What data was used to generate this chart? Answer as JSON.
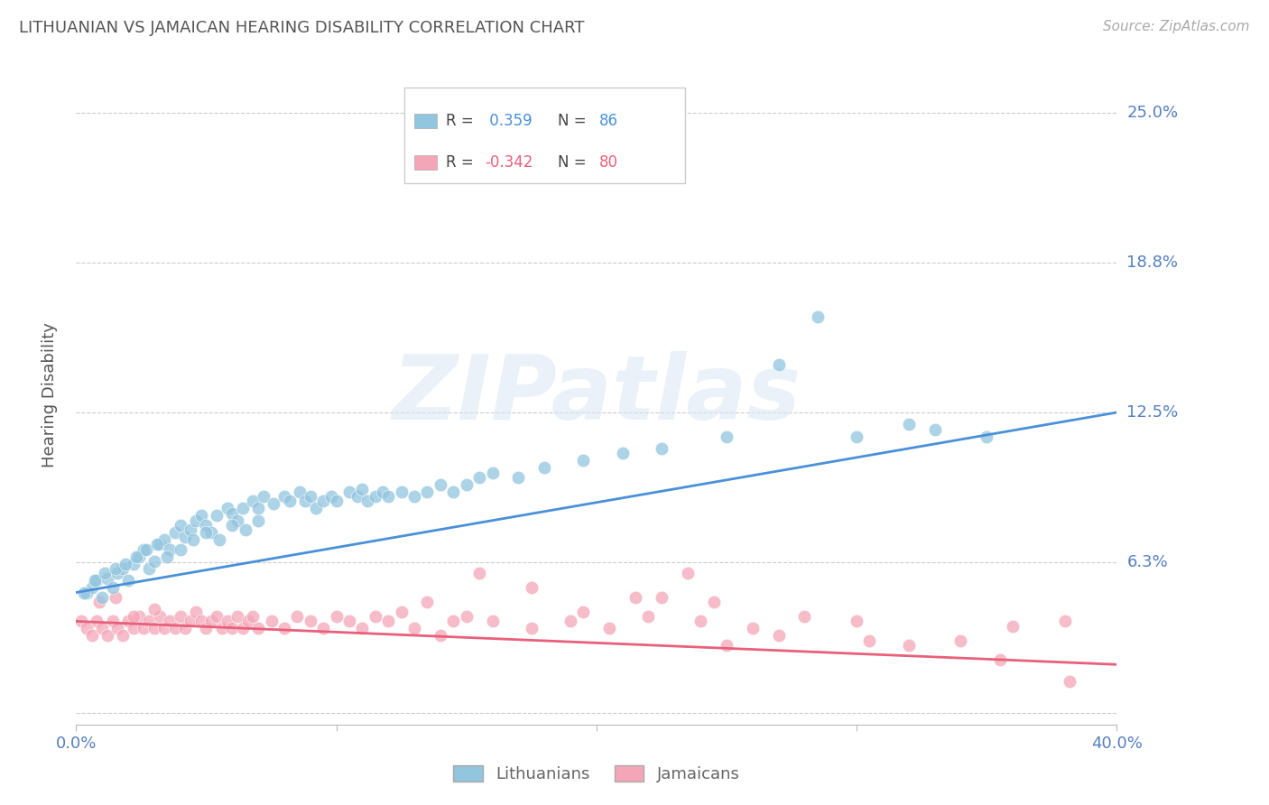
{
  "title": "LITHUANIAN VS JAMAICAN HEARING DISABILITY CORRELATION CHART",
  "source": "Source: ZipAtlas.com",
  "ylabel": "Hearing Disability",
  "xlim": [
    0.0,
    0.4
  ],
  "ylim": [
    -0.005,
    0.27
  ],
  "ytick_vals": [
    0.0,
    0.0625,
    0.125,
    0.1875,
    0.25
  ],
  "ytick_labels": [
    "",
    "6.3%",
    "12.5%",
    "18.8%",
    "25.0%"
  ],
  "xtick_vals": [
    0.0,
    0.1,
    0.2,
    0.3,
    0.4
  ],
  "xtick_labels": [
    "0.0%",
    "",
    "",
    "",
    "40.0%"
  ],
  "blue_R": 0.359,
  "blue_N": 86,
  "pink_R": -0.342,
  "pink_N": 80,
  "blue_color": "#92c5de",
  "pink_color": "#f4a6b8",
  "blue_line_color": "#4a90d9",
  "pink_line_color": "#e8607a",
  "blue_line_y0": 0.05,
  "blue_line_y1": 0.125,
  "pink_line_y0": 0.038,
  "pink_line_y1": 0.02,
  "watermark": "ZIPatlas",
  "background_color": "#ffffff",
  "grid_color": "#cccccc",
  "title_color": "#555555",
  "tick_label_color": "#5580c0",
  "blue_scatter_x": [
    0.004,
    0.006,
    0.008,
    0.01,
    0.012,
    0.014,
    0.016,
    0.018,
    0.02,
    0.022,
    0.024,
    0.026,
    0.028,
    0.03,
    0.032,
    0.034,
    0.036,
    0.038,
    0.04,
    0.042,
    0.044,
    0.046,
    0.048,
    0.05,
    0.052,
    0.054,
    0.058,
    0.06,
    0.062,
    0.064,
    0.068,
    0.07,
    0.072,
    0.076,
    0.08,
    0.082,
    0.086,
    0.088,
    0.09,
    0.092,
    0.095,
    0.098,
    0.1,
    0.105,
    0.108,
    0.11,
    0.112,
    0.115,
    0.118,
    0.12,
    0.125,
    0.13,
    0.135,
    0.14,
    0.145,
    0.15,
    0.155,
    0.16,
    0.17,
    0.18,
    0.195,
    0.21,
    0.225,
    0.25,
    0.27,
    0.285,
    0.3,
    0.32,
    0.33,
    0.35,
    0.003,
    0.007,
    0.011,
    0.015,
    0.019,
    0.023,
    0.027,
    0.031,
    0.035,
    0.04,
    0.045,
    0.05,
    0.055,
    0.06,
    0.065,
    0.07
  ],
  "blue_scatter_y": [
    0.05,
    0.052,
    0.055,
    0.048,
    0.056,
    0.052,
    0.058,
    0.06,
    0.055,
    0.062,
    0.065,
    0.068,
    0.06,
    0.063,
    0.07,
    0.072,
    0.068,
    0.075,
    0.078,
    0.073,
    0.076,
    0.08,
    0.082,
    0.078,
    0.075,
    0.082,
    0.085,
    0.083,
    0.08,
    0.085,
    0.088,
    0.085,
    0.09,
    0.087,
    0.09,
    0.088,
    0.092,
    0.088,
    0.09,
    0.085,
    0.088,
    0.09,
    0.088,
    0.092,
    0.09,
    0.093,
    0.088,
    0.09,
    0.092,
    0.09,
    0.092,
    0.09,
    0.092,
    0.095,
    0.092,
    0.095,
    0.098,
    0.1,
    0.098,
    0.102,
    0.105,
    0.108,
    0.11,
    0.115,
    0.145,
    0.165,
    0.115,
    0.12,
    0.118,
    0.115,
    0.05,
    0.055,
    0.058,
    0.06,
    0.062,
    0.065,
    0.068,
    0.07,
    0.065,
    0.068,
    0.072,
    0.075,
    0.072,
    0.078,
    0.076,
    0.08
  ],
  "pink_scatter_x": [
    0.002,
    0.004,
    0.006,
    0.008,
    0.01,
    0.012,
    0.014,
    0.016,
    0.018,
    0.02,
    0.022,
    0.024,
    0.026,
    0.028,
    0.03,
    0.032,
    0.034,
    0.036,
    0.038,
    0.04,
    0.042,
    0.044,
    0.046,
    0.048,
    0.05,
    0.052,
    0.054,
    0.056,
    0.058,
    0.06,
    0.062,
    0.064,
    0.066,
    0.068,
    0.07,
    0.075,
    0.08,
    0.085,
    0.09,
    0.095,
    0.1,
    0.105,
    0.11,
    0.115,
    0.12,
    0.13,
    0.14,
    0.15,
    0.16,
    0.175,
    0.19,
    0.205,
    0.22,
    0.24,
    0.26,
    0.28,
    0.3,
    0.32,
    0.34,
    0.36,
    0.38,
    0.25,
    0.27,
    0.155,
    0.175,
    0.195,
    0.215,
    0.235,
    0.125,
    0.135,
    0.145,
    0.225,
    0.245,
    0.305,
    0.355,
    0.382,
    0.009,
    0.015,
    0.022,
    0.03
  ],
  "pink_scatter_y": [
    0.038,
    0.035,
    0.032,
    0.038,
    0.035,
    0.032,
    0.038,
    0.035,
    0.032,
    0.038,
    0.035,
    0.04,
    0.035,
    0.038,
    0.035,
    0.04,
    0.035,
    0.038,
    0.035,
    0.04,
    0.035,
    0.038,
    0.042,
    0.038,
    0.035,
    0.038,
    0.04,
    0.035,
    0.038,
    0.035,
    0.04,
    0.035,
    0.038,
    0.04,
    0.035,
    0.038,
    0.035,
    0.04,
    0.038,
    0.035,
    0.04,
    0.038,
    0.035,
    0.04,
    0.038,
    0.035,
    0.032,
    0.04,
    0.038,
    0.035,
    0.038,
    0.035,
    0.04,
    0.038,
    0.035,
    0.04,
    0.038,
    0.028,
    0.03,
    0.036,
    0.038,
    0.028,
    0.032,
    0.058,
    0.052,
    0.042,
    0.048,
    0.058,
    0.042,
    0.046,
    0.038,
    0.048,
    0.046,
    0.03,
    0.022,
    0.013,
    0.046,
    0.048,
    0.04,
    0.043
  ],
  "legend_blue_text": "R =  0.359   N = 86",
  "legend_pink_text": "R = -0.342   N = 80"
}
